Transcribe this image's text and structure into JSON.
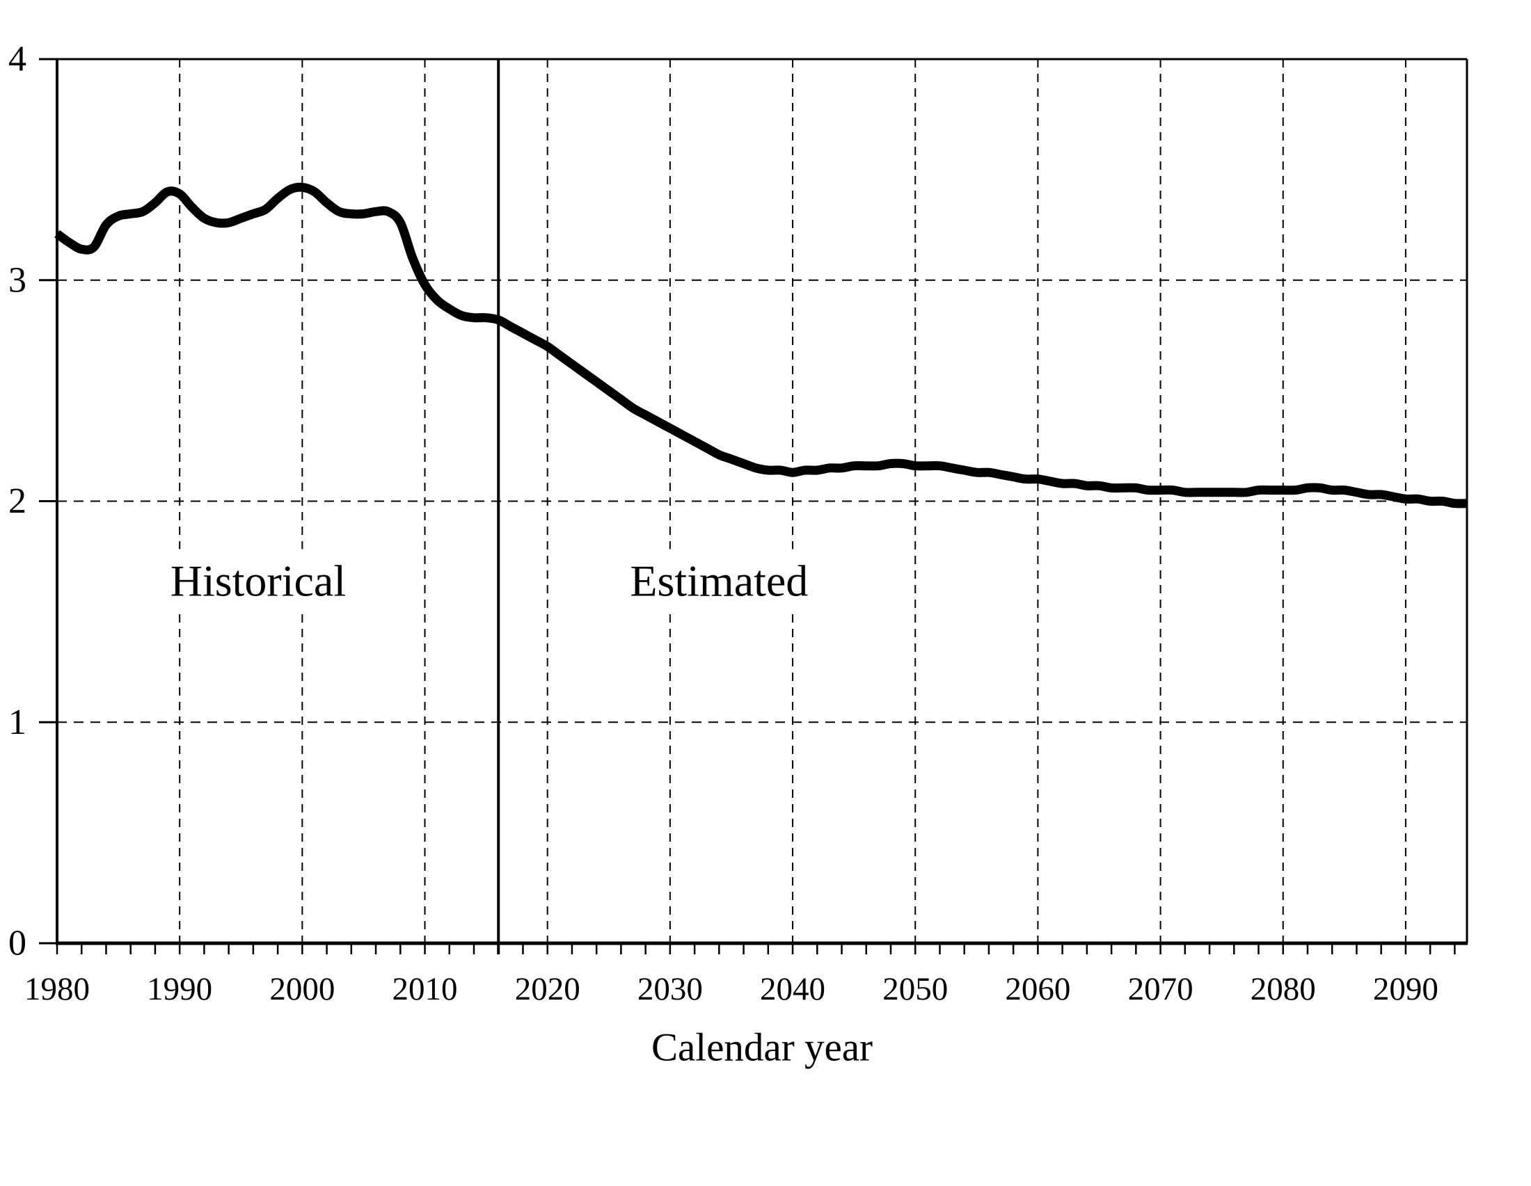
{
  "figure": {
    "background": "#ffffff",
    "xlabel": "Calendar year"
  },
  "chart_data": {
    "type": "line",
    "title": "",
    "xlabel": "Calendar year",
    "ylabel": "",
    "xlim": [
      1980,
      2095
    ],
    "ylim": [
      0,
      4
    ],
    "x_major_ticks": [
      1980,
      1990,
      2000,
      2010,
      2020,
      2030,
      2040,
      2050,
      2060,
      2070,
      2080,
      2090
    ],
    "x_minor_tick_step": 2,
    "y_ticks": [
      0,
      1,
      2,
      3,
      4
    ],
    "grid": {
      "vertical_dashed_at": [
        1990,
        2000,
        2010,
        2020,
        2030,
        2040,
        2050,
        2060,
        2070,
        2080,
        2090
      ],
      "horizontal_dashed_at": [
        1,
        2,
        3
      ],
      "style": "dashed"
    },
    "divider": {
      "x": 2016,
      "style": "solid-vertical"
    },
    "annotations": [
      {
        "text": "Historical",
        "x": 1996.4,
        "y": 1.64
      },
      {
        "text": "Estimated",
        "x": 2034.0,
        "y": 1.64
      }
    ],
    "line_color": "#000000",
    "series": [
      {
        "x_start": 1980,
        "x_step": 1,
        "y": [
          3.21,
          3.17,
          3.14,
          3.15,
          3.25,
          3.29,
          3.3,
          3.31,
          3.35,
          3.4,
          3.39,
          3.33,
          3.28,
          3.26,
          3.26,
          3.28,
          3.3,
          3.32,
          3.37,
          3.41,
          3.42,
          3.4,
          3.35,
          3.31,
          3.3,
          3.3,
          3.31,
          3.31,
          3.26,
          3.1,
          2.98,
          2.91,
          2.87,
          2.84,
          2.83,
          2.83,
          2.82,
          2.79,
          2.76,
          2.73,
          2.7,
          2.66,
          2.62,
          2.58,
          2.54,
          2.5,
          2.46,
          2.42,
          2.39,
          2.36,
          2.33,
          2.3,
          2.27,
          2.24,
          2.21,
          2.19,
          2.17,
          2.15,
          2.14,
          2.14,
          2.13,
          2.14,
          2.14,
          2.15,
          2.15,
          2.16,
          2.16,
          2.16,
          2.17,
          2.17,
          2.16,
          2.16,
          2.16,
          2.15,
          2.14,
          2.13,
          2.13,
          2.12,
          2.11,
          2.1,
          2.1,
          2.09,
          2.08,
          2.08,
          2.07,
          2.07,
          2.06,
          2.06,
          2.06,
          2.05,
          2.05,
          2.05,
          2.04,
          2.04,
          2.04,
          2.04,
          2.04,
          2.04,
          2.05,
          2.05,
          2.05,
          2.05,
          2.06,
          2.06,
          2.05,
          2.05,
          2.04,
          2.03,
          2.03,
          2.02,
          2.01,
          2.01,
          2.0,
          2.0,
          1.99,
          1.99
        ]
      }
    ]
  }
}
